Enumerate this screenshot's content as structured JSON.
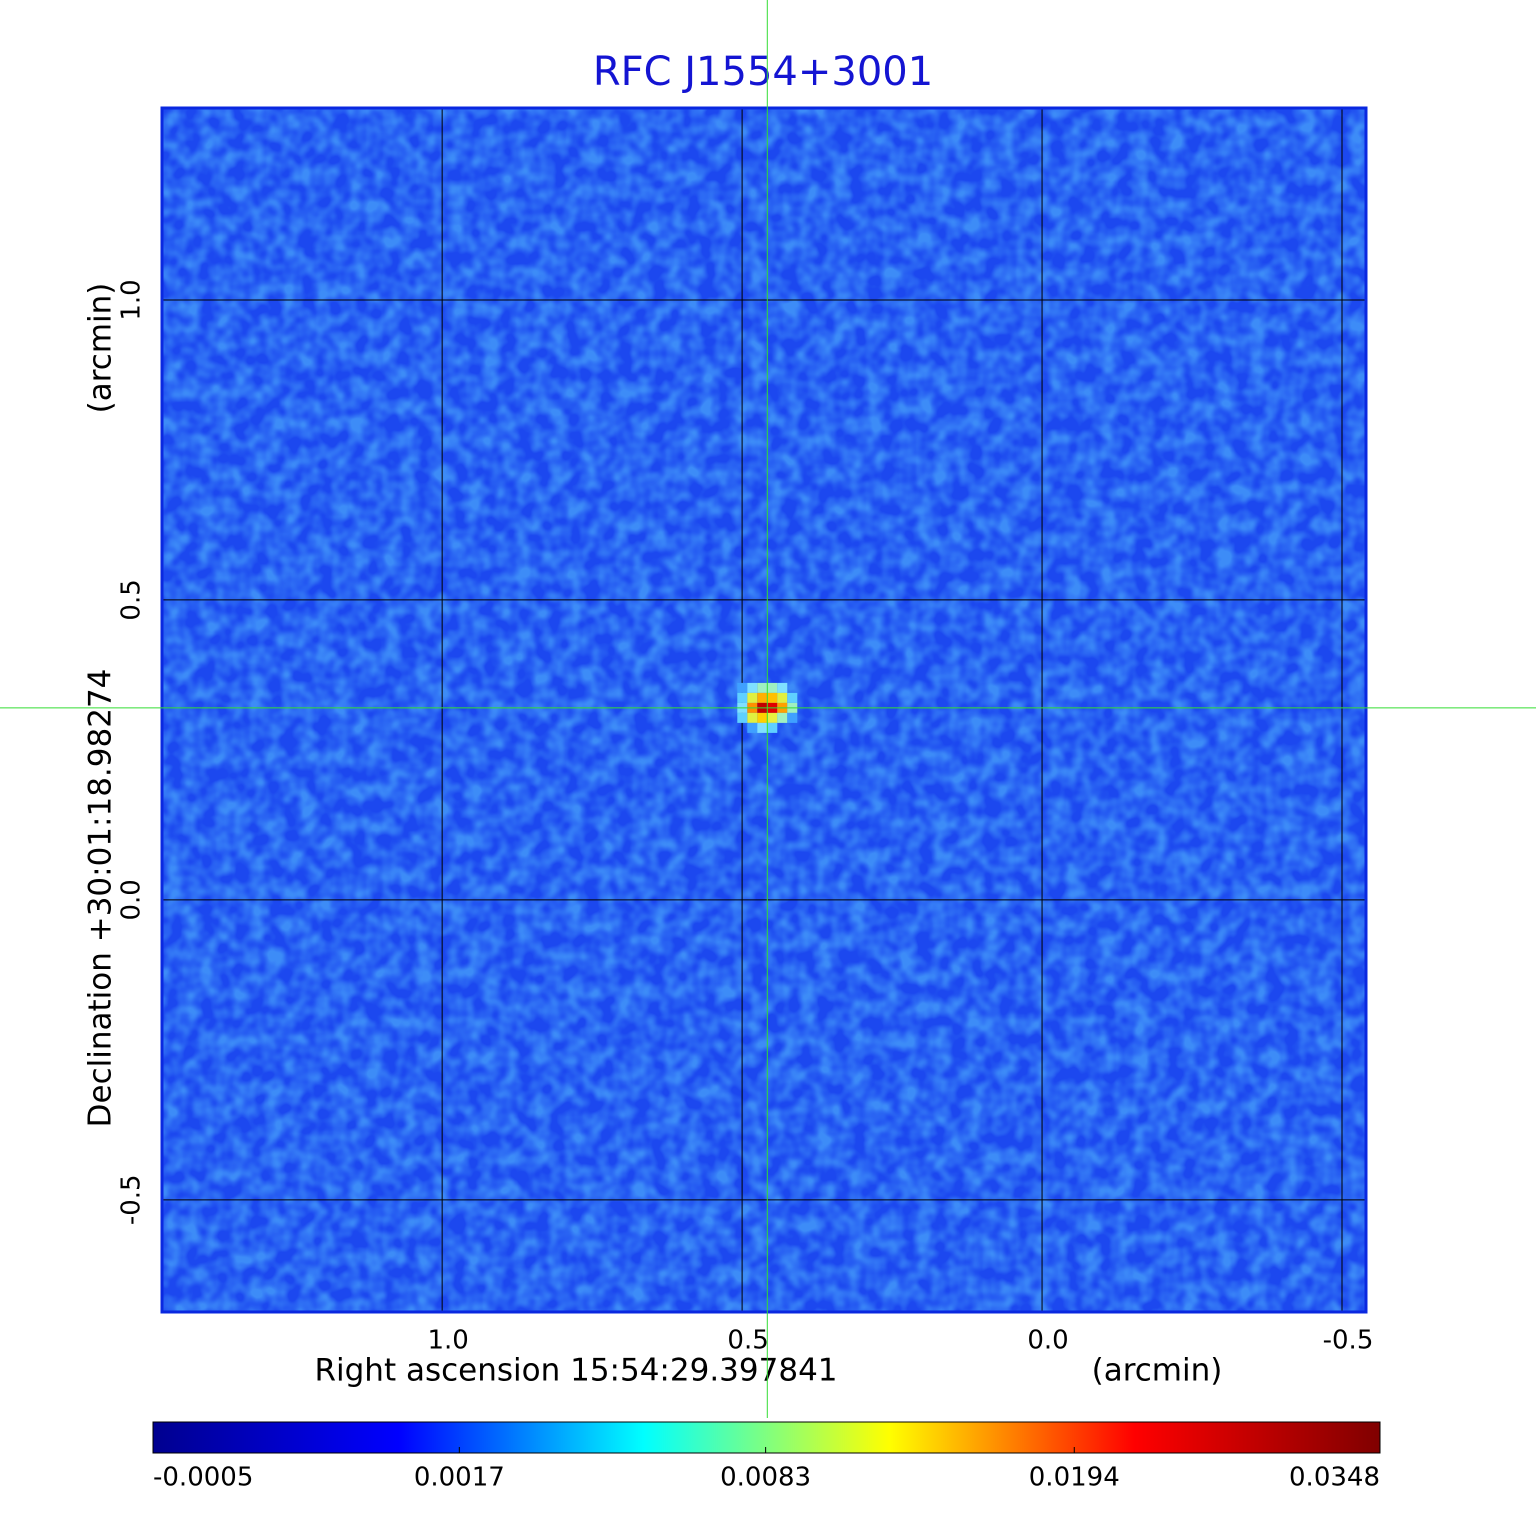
{
  "chart_data": {
    "type": "image",
    "title": "RFC J1554+3001",
    "x_label": "Right ascension  15:54:29.397841",
    "x_unit": "(arcmin)",
    "y_label": "Declination  +30:01:18.98274",
    "y_unit": "(arcmin)",
    "xlim": [
      1.467,
      -0.54
    ],
    "ylim": [
      -0.687,
      1.32
    ],
    "xticks": [
      {
        "value": 1.0,
        "label": "1.0"
      },
      0.5,
      {
        "value": 0.0,
        "label": "0.0"
      },
      -0.5
    ],
    "yticks": [
      {
        "value": 1.0,
        "label": "1.0"
      },
      0.5,
      {
        "value": 0.0,
        "label": "0.0"
      },
      -0.5
    ],
    "grid": true,
    "crosshair": {
      "x": 0.458,
      "y": 0.32,
      "color": "#33dd33"
    },
    "colormap": [
      "#00008f",
      "#0000ff",
      "#00ffff",
      "#ffff00",
      "#ff0000",
      "#800000"
    ],
    "colorbar_scale": "sqrt",
    "clim": [
      -0.0005,
      0.0348
    ],
    "colorbar_ticks": [
      -0.0005,
      0.0017,
      0.0083,
      0.0194,
      0.0348
    ]
  }
}
